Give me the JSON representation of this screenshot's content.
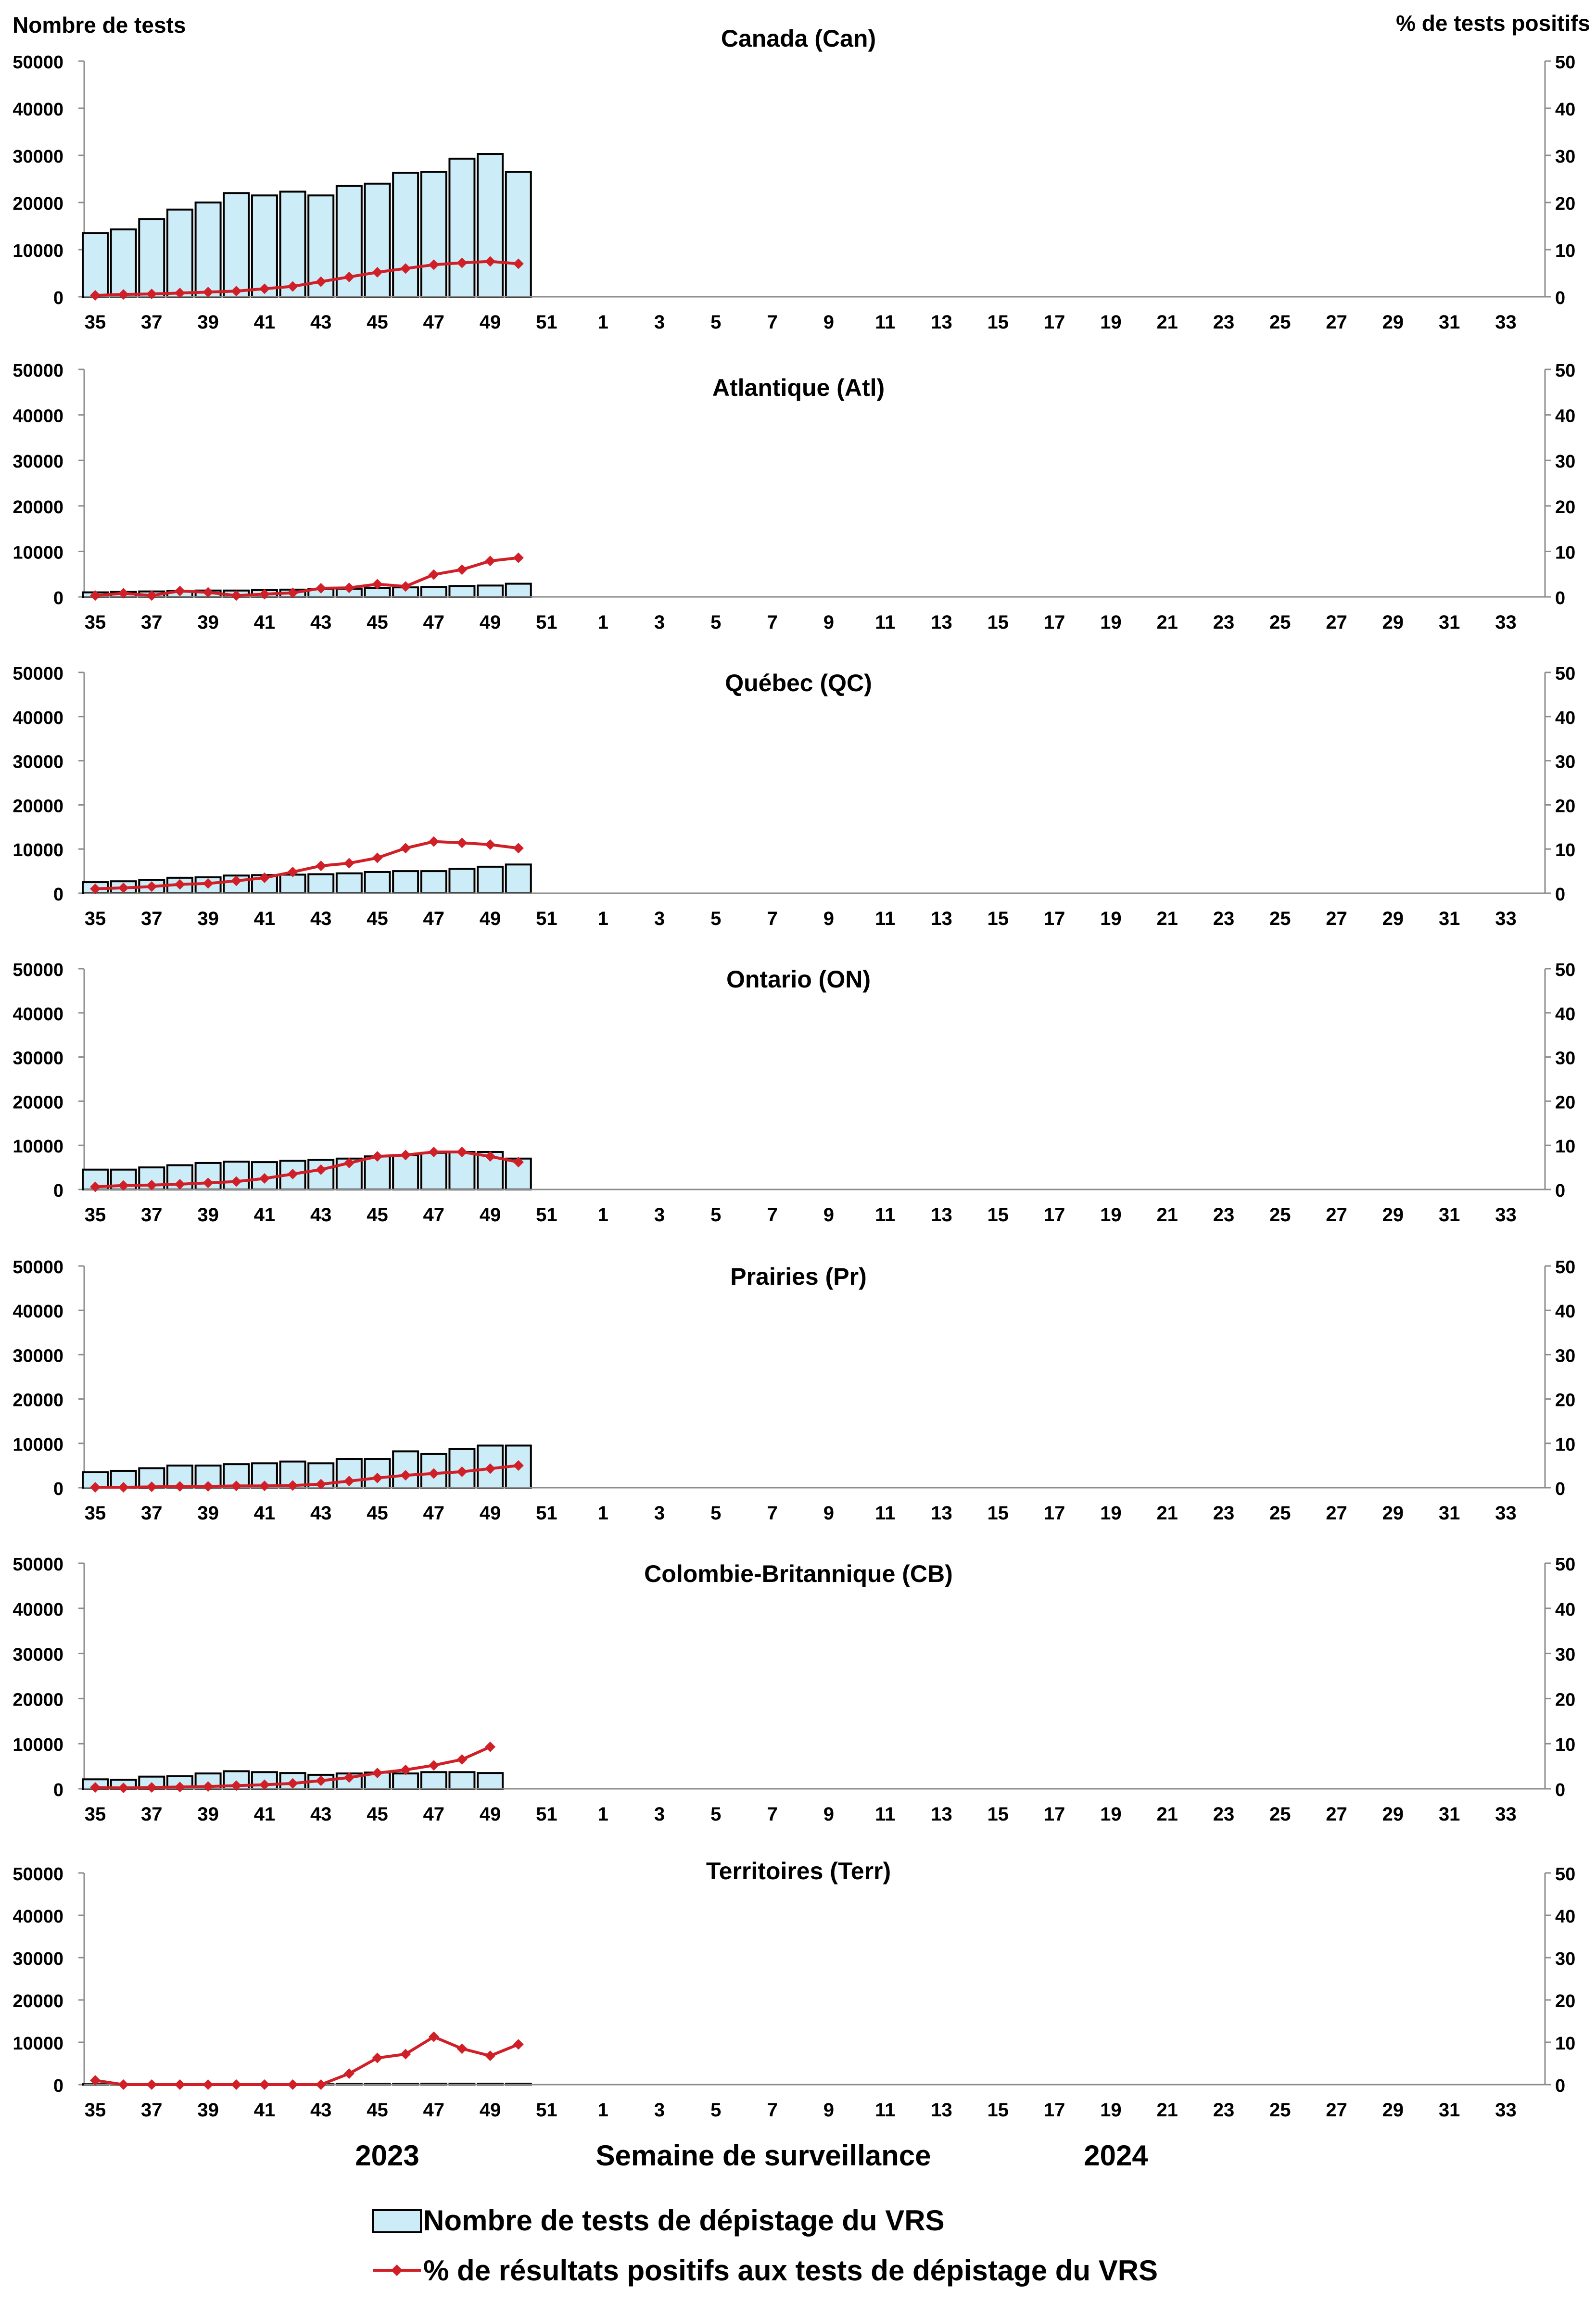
{
  "figure": {
    "left_axis_title": "Nombre de tests",
    "right_axis_title": "% de tests positifs",
    "year_left": "2023",
    "year_right": "2024",
    "x_axis_title": "Semaine de surveillance",
    "legend": {
      "bars_label": "Nombre de tests de dépistage du VRS",
      "line_label": "% de résultats positifs aux tests de dépistage du VRS"
    },
    "colors": {
      "bar_fill": "#CCECF8",
      "bar_stroke": "#000000",
      "line": "#D11F27",
      "marker": "#D11F27",
      "axis": "#8C8C8C"
    }
  },
  "chart_data": [
    {
      "type": "bar",
      "title": "Canada (Can)",
      "x": [
        35,
        36,
        37,
        38,
        39,
        40,
        41,
        42,
        43,
        44,
        45,
        46,
        47,
        48,
        49,
        50
      ],
      "x_tick_labels": [
        "35",
        "37",
        "39",
        "41",
        "43",
        "45",
        "47",
        "49",
        "51",
        "1",
        "3",
        "5",
        "7",
        "9",
        "11",
        "13",
        "15",
        "17",
        "19",
        "21",
        "23",
        "25",
        "27",
        "29",
        "31",
        "33"
      ],
      "ylim_left": [
        0,
        50000
      ],
      "ylim_right": [
        0,
        50
      ],
      "y_ticks_left": [
        "0",
        "10000",
        "20000",
        "30000",
        "40000",
        "50000"
      ],
      "y_ticks_right": [
        "0",
        "10",
        "20",
        "30",
        "40",
        "50"
      ],
      "series": [
        {
          "name": "Nombre de tests de dépistage du VRS",
          "axis": "left",
          "type": "bar",
          "values": [
            13500,
            14300,
            16500,
            18500,
            20000,
            22000,
            21500,
            22300,
            21500,
            23500,
            24000,
            26300,
            26500,
            29300,
            30300,
            26500
          ]
        },
        {
          "name": "% de résultats positifs aux tests de dépistage du VRS",
          "axis": "right",
          "type": "line",
          "values": [
            0.3,
            0.5,
            0.6,
            0.8,
            1.0,
            1.2,
            1.7,
            2.2,
            3.2,
            4.2,
            5.2,
            6.0,
            6.8,
            7.2,
            7.5,
            7.0
          ]
        }
      ]
    },
    {
      "type": "bar",
      "title": "Atlantique (Atl)",
      "x": [
        35,
        36,
        37,
        38,
        39,
        40,
        41,
        42,
        43,
        44,
        45,
        46,
        47,
        48,
        49,
        50
      ],
      "x_tick_labels": [
        "35",
        "37",
        "39",
        "41",
        "43",
        "45",
        "47",
        "49",
        "51",
        "1",
        "3",
        "5",
        "7",
        "9",
        "11",
        "13",
        "15",
        "17",
        "19",
        "21",
        "23",
        "25",
        "27",
        "29",
        "31",
        "33"
      ],
      "ylim_left": [
        0,
        50000
      ],
      "ylim_right": [
        0,
        50
      ],
      "y_ticks_left": [
        "0",
        "10000",
        "20000",
        "30000",
        "40000",
        "50000"
      ],
      "y_ticks_right": [
        "0",
        "10",
        "20",
        "30",
        "40",
        "50"
      ],
      "series": [
        {
          "name": "Nombre de tests de dépistage du VRS",
          "axis": "left",
          "type": "bar",
          "values": [
            1000,
            1100,
            1200,
            1300,
            1400,
            1400,
            1500,
            1600,
            1700,
            1800,
            2000,
            2100,
            2200,
            2400,
            2500,
            2900
          ]
        },
        {
          "name": "% de résultats positifs aux tests de dépistage du VRS",
          "axis": "right",
          "type": "line",
          "values": [
            0.3,
            0.8,
            0.3,
            1.3,
            1.0,
            0.3,
            0.6,
            0.9,
            1.9,
            2.0,
            2.8,
            2.3,
            4.9,
            6.0,
            7.9,
            8.6
          ]
        }
      ]
    },
    {
      "type": "bar",
      "title": "Québec (QC)",
      "x": [
        35,
        36,
        37,
        38,
        39,
        40,
        41,
        42,
        43,
        44,
        45,
        46,
        47,
        48,
        49,
        50
      ],
      "x_tick_labels": [
        "35",
        "37",
        "39",
        "41",
        "43",
        "45",
        "47",
        "49",
        "51",
        "1",
        "3",
        "5",
        "7",
        "9",
        "11",
        "13",
        "15",
        "17",
        "19",
        "21",
        "23",
        "25",
        "27",
        "29",
        "31",
        "33"
      ],
      "ylim_left": [
        0,
        50000
      ],
      "ylim_right": [
        0,
        50
      ],
      "y_ticks_left": [
        "0",
        "10000",
        "20000",
        "30000",
        "40000",
        "50000"
      ],
      "y_ticks_right": [
        "0",
        "10",
        "20",
        "30",
        "40",
        "50"
      ],
      "series": [
        {
          "name": "Nombre de tests de dépistage du VRS",
          "axis": "left",
          "type": "bar",
          "values": [
            2500,
            2700,
            3000,
            3500,
            3600,
            4000,
            4100,
            4200,
            4300,
            4500,
            4800,
            5000,
            5000,
            5500,
            6000,
            6500
          ]
        },
        {
          "name": "% de résultats positifs aux tests de dépistage du VRS",
          "axis": "right",
          "type": "line",
          "values": [
            1.0,
            1.2,
            1.5,
            2.0,
            2.2,
            2.8,
            3.5,
            4.8,
            6.2,
            6.8,
            8.0,
            10.2,
            11.7,
            11.4,
            11.0,
            10.2
          ]
        }
      ]
    },
    {
      "type": "bar",
      "title": "Ontario (ON)",
      "x": [
        35,
        36,
        37,
        38,
        39,
        40,
        41,
        42,
        43,
        44,
        45,
        46,
        47,
        48,
        49,
        50
      ],
      "x_tick_labels": [
        "35",
        "37",
        "39",
        "41",
        "43",
        "45",
        "47",
        "49",
        "51",
        "1",
        "3",
        "5",
        "7",
        "9",
        "11",
        "13",
        "15",
        "17",
        "19",
        "21",
        "23",
        "25",
        "27",
        "29",
        "31",
        "33"
      ],
      "ylim_left": [
        0,
        50000
      ],
      "ylim_right": [
        0,
        50
      ],
      "y_ticks_left": [
        "0",
        "10000",
        "20000",
        "30000",
        "40000",
        "50000"
      ],
      "y_ticks_right": [
        "0",
        "10",
        "20",
        "30",
        "40",
        "50"
      ],
      "series": [
        {
          "name": "Nombre de tests de dépistage du VRS",
          "axis": "left",
          "type": "bar",
          "values": [
            4500,
            4500,
            5000,
            5500,
            6000,
            6300,
            6200,
            6500,
            6700,
            7000,
            7500,
            7800,
            8300,
            8500,
            8500,
            7000
          ]
        },
        {
          "name": "% de résultats positifs aux tests de dépistage du VRS",
          "axis": "right",
          "type": "line",
          "values": [
            0.6,
            0.9,
            1.0,
            1.2,
            1.5,
            1.8,
            2.5,
            3.5,
            4.5,
            6.0,
            7.5,
            7.8,
            8.5,
            8.5,
            7.5,
            6.2
          ]
        }
      ]
    },
    {
      "type": "bar",
      "title": "Prairies (Pr)",
      "x": [
        35,
        36,
        37,
        38,
        39,
        40,
        41,
        42,
        43,
        44,
        45,
        46,
        47,
        48,
        49,
        50
      ],
      "x_tick_labels": [
        "35",
        "37",
        "39",
        "41",
        "43",
        "45",
        "47",
        "49",
        "51",
        "1",
        "3",
        "5",
        "7",
        "9",
        "11",
        "13",
        "15",
        "17",
        "19",
        "21",
        "23",
        "25",
        "27",
        "29",
        "31",
        "33"
      ],
      "ylim_left": [
        0,
        50000
      ],
      "ylim_right": [
        0,
        50
      ],
      "y_ticks_left": [
        "0",
        "10000",
        "20000",
        "30000",
        "40000",
        "50000"
      ],
      "y_ticks_right": [
        "0",
        "10",
        "20",
        "30",
        "40",
        "50"
      ],
      "series": [
        {
          "name": "Nombre de tests de dépistage du VRS",
          "axis": "left",
          "type": "bar",
          "values": [
            3500,
            3800,
            4400,
            5000,
            5000,
            5300,
            5500,
            5900,
            5500,
            6500,
            6500,
            8200,
            7600,
            8700,
            9500,
            9500
          ]
        },
        {
          "name": "% de résultats positifs aux tests de dépistage du VRS",
          "axis": "right",
          "type": "line",
          "values": [
            0.1,
            0.1,
            0.2,
            0.3,
            0.3,
            0.4,
            0.4,
            0.5,
            0.8,
            1.5,
            2.2,
            2.8,
            3.2,
            3.6,
            4.3,
            5.0
          ]
        }
      ]
    },
    {
      "type": "bar",
      "title": "Colombie-Britannique (CB)",
      "x": [
        35,
        36,
        37,
        38,
        39,
        40,
        41,
        42,
        43,
        44,
        45,
        46,
        47,
        48,
        49
      ],
      "x_tick_labels": [
        "35",
        "37",
        "39",
        "41",
        "43",
        "45",
        "47",
        "49",
        "51",
        "1",
        "3",
        "5",
        "7",
        "9",
        "11",
        "13",
        "15",
        "17",
        "19",
        "21",
        "23",
        "25",
        "27",
        "29",
        "31",
        "33"
      ],
      "ylim_left": [
        0,
        50000
      ],
      "ylim_right": [
        0,
        50
      ],
      "y_ticks_left": [
        "0",
        "10000",
        "20000",
        "30000",
        "40000",
        "50000"
      ],
      "y_ticks_right": [
        "0",
        "10",
        "20",
        "30",
        "40",
        "50"
      ],
      "series": [
        {
          "name": "Nombre de tests de dépistage du VRS",
          "axis": "left",
          "type": "bar",
          "values": [
            2100,
            2000,
            2700,
            2800,
            3400,
            3900,
            3700,
            3500,
            3100,
            3400,
            3600,
            3400,
            3700,
            3700,
            3500
          ]
        },
        {
          "name": "% de résultats positifs aux tests de dépistage du VRS",
          "axis": "right",
          "type": "line",
          "values": [
            0.3,
            0.2,
            0.3,
            0.4,
            0.5,
            0.7,
            0.9,
            1.2,
            1.8,
            2.5,
            3.5,
            4.2,
            5.2,
            6.5,
            9.3
          ]
        }
      ]
    },
    {
      "type": "bar",
      "title": "Territoires (Terr)",
      "x": [
        35,
        36,
        37,
        38,
        39,
        40,
        41,
        42,
        43,
        44,
        45,
        46,
        47,
        48,
        49,
        50
      ],
      "x_tick_labels": [
        "35",
        "37",
        "39",
        "41",
        "43",
        "45",
        "47",
        "49",
        "51",
        "1",
        "3",
        "5",
        "7",
        "9",
        "11",
        "13",
        "15",
        "17",
        "19",
        "21",
        "23",
        "25",
        "27",
        "29",
        "31",
        "33"
      ],
      "ylim_left": [
        0,
        50000
      ],
      "ylim_right": [
        0,
        50
      ],
      "y_ticks_left": [
        "0",
        "10000",
        "20000",
        "30000",
        "40000",
        "50000"
      ],
      "y_ticks_right": [
        "0",
        "10",
        "20",
        "30",
        "40",
        "50"
      ],
      "series": [
        {
          "name": "Nombre de tests de dépistage du VRS",
          "axis": "left",
          "type": "bar",
          "values": [
            100,
            100,
            100,
            100,
            100,
            100,
            100,
            100,
            100,
            150,
            150,
            150,
            200,
            200,
            200,
            200
          ]
        },
        {
          "name": "% de résultats positifs aux tests de dépistage du VRS",
          "axis": "right",
          "type": "line",
          "values": [
            1.0,
            0.0,
            0.0,
            0.0,
            0.0,
            0.0,
            0.0,
            0.0,
            0.0,
            2.6,
            6.3,
            7.2,
            11.3,
            8.5,
            6.8,
            9.5
          ]
        }
      ]
    }
  ]
}
